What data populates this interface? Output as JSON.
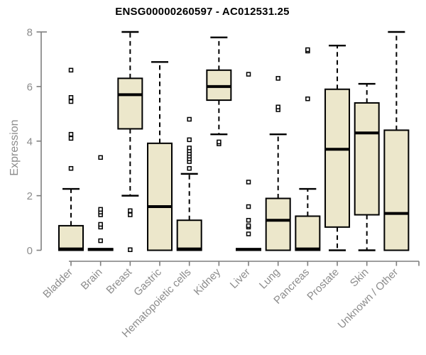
{
  "figure": {
    "background": "#ffffff",
    "title_color": "#000000",
    "axis_color": "#7f7f7f",
    "tick_label_color": "#8c8c8c"
  },
  "chart_data": {
    "type": "boxplot",
    "title": "ENSG00000260597 - AC012531.25",
    "xlabel": "",
    "ylabel": "Expression",
    "ylim": [
      0,
      8
    ],
    "yticks": [
      0,
      2,
      4,
      6,
      8
    ],
    "grid": false,
    "legend": "none",
    "box_fill": "#ece7cb",
    "box_stroke": "#000000",
    "categories": [
      "Bladder",
      "Brain",
      "Breast",
      "Gastric",
      "Hematopoietic cells",
      "Kidney",
      "Liver",
      "Lung",
      "Pancreas",
      "Prostate",
      "Skin",
      "Unknown / Other"
    ],
    "series": [
      {
        "category": "Bladder",
        "whisker_low": 0,
        "q1": 0,
        "median": 0.05,
        "q3": 0.9,
        "whisker_high": 2.25,
        "outliers": [
          3.0,
          4.1,
          4.25,
          5.45,
          5.6,
          6.6
        ]
      },
      {
        "category": "Brain",
        "whisker_low": 0,
        "q1": 0,
        "median": 0.03,
        "q3": 0.06,
        "whisker_high": 0.06,
        "outliers": [
          0.35,
          0.85,
          0.95,
          1.3,
          1.4,
          1.5,
          3.4
        ]
      },
      {
        "category": "Breast",
        "whisker_low": 2.0,
        "q1": 4.45,
        "median": 5.7,
        "q3": 6.3,
        "whisker_high": 8.0,
        "outliers": [
          0.02,
          1.3,
          1.45
        ]
      },
      {
        "category": "Gastric",
        "whisker_low": 0,
        "q1": 0,
        "median": 1.6,
        "q3": 3.92,
        "whisker_high": 6.9,
        "outliers": []
      },
      {
        "category": "Hematopoietic cells",
        "whisker_low": 0,
        "q1": 0,
        "median": 0.05,
        "q3": 1.1,
        "whisker_high": 2.8,
        "outliers": [
          3.0,
          3.25,
          3.35,
          3.45,
          3.55,
          3.65,
          3.75,
          4.05,
          4.8
        ]
      },
      {
        "category": "Kidney",
        "whisker_low": 4.25,
        "q1": 5.5,
        "median": 6.0,
        "q3": 6.6,
        "whisker_high": 7.8,
        "outliers": [
          3.9,
          3.97
        ]
      },
      {
        "category": "Liver",
        "whisker_low": 0,
        "q1": 0,
        "median": 0.03,
        "q3": 0.06,
        "whisker_high": 0.06,
        "outliers": [
          0.6,
          0.85,
          0.9,
          1.1,
          1.6,
          2.5,
          6.45
        ]
      },
      {
        "category": "Lung",
        "whisker_low": 0,
        "q1": 0,
        "median": 1.1,
        "q3": 1.9,
        "whisker_high": 4.25,
        "outliers": [
          5.15,
          5.25,
          6.3
        ]
      },
      {
        "category": "Pancreas",
        "whisker_low": 0,
        "q1": 0,
        "median": 0.05,
        "q3": 1.25,
        "whisker_high": 2.25,
        "outliers": [
          5.55,
          7.3,
          7.35
        ]
      },
      {
        "category": "Prostate",
        "whisker_low": 0,
        "q1": 0.85,
        "median": 3.7,
        "q3": 5.9,
        "whisker_high": 7.5,
        "outliers": []
      },
      {
        "category": "Skin",
        "whisker_low": 0,
        "q1": 1.3,
        "median": 4.3,
        "q3": 5.4,
        "whisker_high": 6.1,
        "outliers": []
      },
      {
        "category": "Unknown / Other",
        "whisker_low": 0,
        "q1": 0,
        "median": 1.35,
        "q3": 4.4,
        "whisker_high": 8.0,
        "outliers": []
      }
    ]
  }
}
